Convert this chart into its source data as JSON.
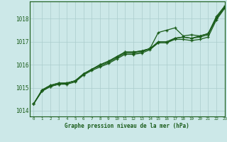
{
  "title": "Graphe pression niveau de la mer (hPa)",
  "background_color": "#cce8e8",
  "grid_color": "#aacccc",
  "line_color": "#1a5c1a",
  "xlim": [
    -0.5,
    23
  ],
  "ylim": [
    1013.75,
    1018.75
  ],
  "yticks": [
    1014,
    1015,
    1016,
    1017,
    1018
  ],
  "xticks": [
    0,
    1,
    2,
    3,
    4,
    5,
    6,
    7,
    8,
    9,
    10,
    11,
    12,
    13,
    14,
    15,
    16,
    17,
    18,
    19,
    20,
    21,
    22,
    23
  ],
  "series1": [
    1014.3,
    1014.85,
    1015.05,
    1015.15,
    1015.15,
    1015.25,
    1015.55,
    1015.75,
    1015.9,
    1016.05,
    1016.25,
    1016.45,
    1016.45,
    1016.5,
    1016.65,
    1016.95,
    1016.95,
    1017.1,
    1017.1,
    1017.05,
    1017.1,
    1017.2,
    1017.95,
    1018.45
  ],
  "series2": [
    1014.3,
    1014.9,
    1015.1,
    1015.2,
    1015.2,
    1015.3,
    1015.6,
    1015.8,
    1015.95,
    1016.1,
    1016.3,
    1016.5,
    1016.5,
    1016.55,
    1016.7,
    1017.0,
    1017.0,
    1017.15,
    1017.2,
    1017.15,
    1017.2,
    1017.3,
    1018.05,
    1018.5
  ],
  "series3": [
    1014.3,
    1014.85,
    1015.05,
    1015.15,
    1015.2,
    1015.3,
    1015.6,
    1015.8,
    1016.0,
    1016.15,
    1016.35,
    1016.55,
    1016.55,
    1016.6,
    1016.7,
    1016.95,
    1016.95,
    1017.15,
    1017.2,
    1017.15,
    1017.25,
    1017.35,
    1018.1,
    1018.55
  ],
  "series4": [
    1014.3,
    1014.9,
    1015.1,
    1015.2,
    1015.2,
    1015.3,
    1015.6,
    1015.8,
    1016.0,
    1016.15,
    1016.35,
    1016.55,
    1016.55,
    1016.6,
    1016.7,
    1017.4,
    1017.5,
    1017.6,
    1017.25,
    1017.3,
    1017.25,
    1017.35,
    1018.0,
    1018.5
  ]
}
